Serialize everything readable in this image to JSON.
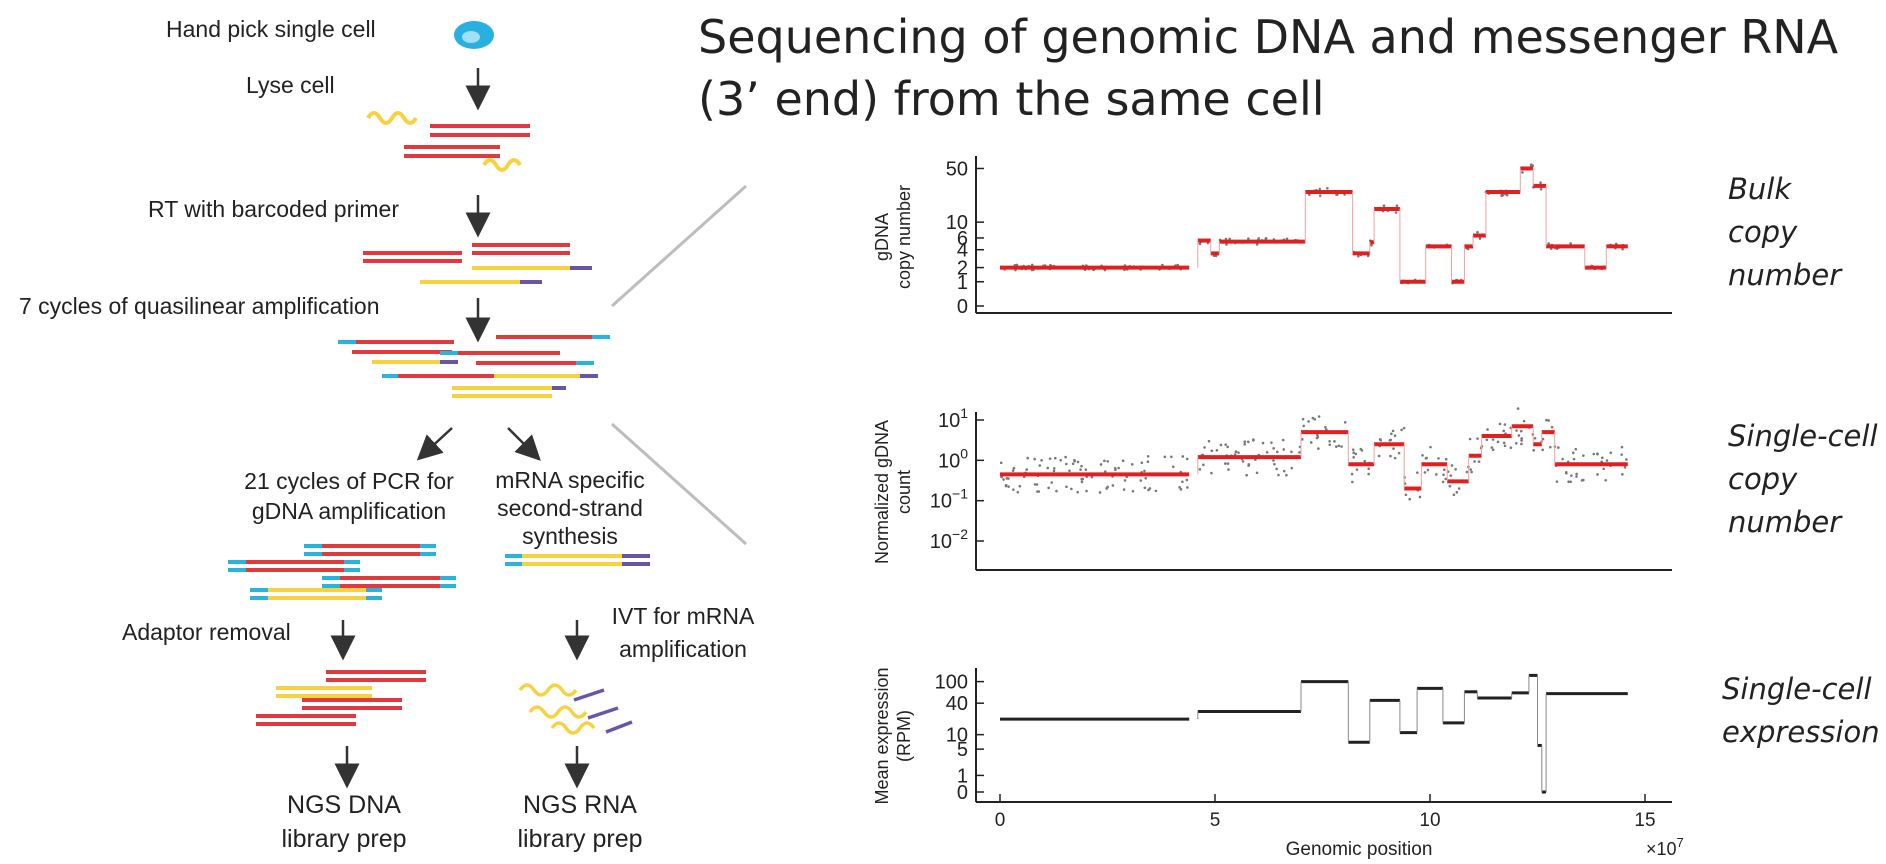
{
  "title": {
    "line1": "Sequencing of genomic DNA and messenger RNA",
    "line2": "(3’ end) from the same cell"
  },
  "workflow": {
    "step_pick": "Hand pick single cell",
    "step_lyse": "Lyse cell",
    "step_rt": "RT with barcoded primer",
    "step_amp": "7 cycles of quasilinear amplification",
    "gdna_pcr_line1": "21 cycles of PCR for",
    "gdna_pcr_line2": "gDNA amplification",
    "mrna_ss_line1": "mRNA specific",
    "mrna_ss_line2": "second-strand",
    "mrna_ss_line3": "synthesis",
    "adaptor_removal": "Adaptor removal",
    "ivt_line1": "IVT for mRNA",
    "ivt_line2": "amplification",
    "ngs_dna_line1": "NGS DNA",
    "ngs_dna_line2": "library prep",
    "ngs_rna_line1": "NGS RNA",
    "ngs_rna_line2": "library prep"
  },
  "side_labels": {
    "bulk": [
      "Bulk",
      "copy",
      "number"
    ],
    "single_cn": [
      "Single-cell",
      "copy",
      "number"
    ],
    "single_expr": [
      "Single-cell",
      "expression"
    ]
  },
  "colors": {
    "red_strand": "#e03a3e",
    "yellow_strand": "#f7d23e",
    "cyan_adaptor": "#28b4dc",
    "purple_barcode": "#6a55a5",
    "cell_blue": "#2ab0e0",
    "segment_red": "#e02020",
    "expr_line": "#222222",
    "arrow": "#333333"
  },
  "chart_data": [
    {
      "type": "scatter",
      "ylabel": "gDNA\ncopy number",
      "xlabel": "",
      "xlim": [
        -0.8,
        15.2
      ],
      "x_multiplier": "×10^7",
      "y_ticks": [
        "0",
        "1",
        "2",
        "4",
        "6",
        "10",
        "50"
      ],
      "segments": [
        {
          "x": [
            0,
            4.4
          ],
          "y": 2
        },
        {
          "x": [
            4.6,
            4.9
          ],
          "y": 5.5
        },
        {
          "x": [
            4.9,
            5.1
          ],
          "y": 3.5
        },
        {
          "x": [
            5.1,
            7.1
          ],
          "y": 5.3
        },
        {
          "x": [
            7.1,
            8.2
          ],
          "y": 25
        },
        {
          "x": [
            8.2,
            8.6
          ],
          "y": 3.5
        },
        {
          "x": [
            8.6,
            8.7
          ],
          "y": 5.2
        },
        {
          "x": [
            8.7,
            9.3
          ],
          "y": 15
        },
        {
          "x": [
            9.3,
            9.9
          ],
          "y": 1
        },
        {
          "x": [
            9.9,
            10.5
          ],
          "y": 4.5
        },
        {
          "x": [
            10.5,
            10.8
          ],
          "y": 1
        },
        {
          "x": [
            10.8,
            11.0
          ],
          "y": 4.5
        },
        {
          "x": [
            11.0,
            11.3
          ],
          "y": 6.5
        },
        {
          "x": [
            11.3,
            12.1
          ],
          "y": 25
        },
        {
          "x": [
            12.1,
            12.4
          ],
          "y": 50
        },
        {
          "x": [
            12.4,
            12.7
          ],
          "y": 30
        },
        {
          "x": [
            12.7,
            12.9
          ],
          "y": 4.5
        },
        {
          "x": [
            12.9,
            13.6
          ],
          "y": 4.5
        },
        {
          "x": [
            13.6,
            14.1
          ],
          "y": 2
        },
        {
          "x": [
            14.1,
            14.6
          ],
          "y": 4.5
        }
      ]
    },
    {
      "type": "scatter",
      "ylabel": "Normalized gDNA\ncount",
      "xlabel": "",
      "xlim": [
        -0.8,
        15.2
      ],
      "y_ticks": [
        "10^1",
        "10^0",
        "10^−1",
        "10^−2"
      ],
      "segments": [
        {
          "x": [
            0,
            4.4
          ],
          "y": 0.45
        },
        {
          "x": [
            4.6,
            7.0
          ],
          "y": 1.2
        },
        {
          "x": [
            7.0,
            8.1
          ],
          "y": 5
        },
        {
          "x": [
            8.1,
            8.7
          ],
          "y": 0.8
        },
        {
          "x": [
            8.7,
            9.4
          ],
          "y": 2.5
        },
        {
          "x": [
            9.4,
            9.8
          ],
          "y": 0.2
        },
        {
          "x": [
            9.8,
            10.4
          ],
          "y": 0.8
        },
        {
          "x": [
            10.4,
            10.9
          ],
          "y": 0.3
        },
        {
          "x": [
            10.9,
            11.2
          ],
          "y": 1.3
        },
        {
          "x": [
            11.2,
            11.9
          ],
          "y": 4
        },
        {
          "x": [
            11.9,
            12.4
          ],
          "y": 7
        },
        {
          "x": [
            12.4,
            12.6
          ],
          "y": 2.5
        },
        {
          "x": [
            12.6,
            12.9
          ],
          "y": 5
        },
        {
          "x": [
            12.9,
            14.6
          ],
          "y": 0.8
        }
      ]
    },
    {
      "type": "line",
      "ylabel": "Mean expression\n(RPM)",
      "xlabel": "Genomic position",
      "xlim": [
        -0.8,
        15.2
      ],
      "x_ticks": [
        "0",
        "5",
        "10",
        "15"
      ],
      "x_multiplier": "×10",
      "x_multiplier_exp": "7",
      "y_ticks": [
        "0",
        "1",
        "5",
        "10",
        "40",
        "100"
      ],
      "segments": [
        {
          "x": [
            0,
            4.4
          ],
          "y": 20
        },
        {
          "x": [
            4.6,
            7.0
          ],
          "y": 28
        },
        {
          "x": [
            7.0,
            8.1
          ],
          "y": 100
        },
        {
          "x": [
            8.1,
            8.6
          ],
          "y": 7
        },
        {
          "x": [
            8.6,
            9.3
          ],
          "y": 45
        },
        {
          "x": [
            9.3,
            9.7
          ],
          "y": 11
        },
        {
          "x": [
            9.7,
            10.3
          ],
          "y": 75
        },
        {
          "x": [
            10.3,
            10.8
          ],
          "y": 17
        },
        {
          "x": [
            10.8,
            11.1
          ],
          "y": 65
        },
        {
          "x": [
            11.1,
            11.9
          ],
          "y": 50
        },
        {
          "x": [
            11.9,
            12.3
          ],
          "y": 62
        },
        {
          "x": [
            12.3,
            12.5
          ],
          "y": 130
        },
        {
          "x": [
            12.5,
            12.6
          ],
          "y": 6
        },
        {
          "x": [
            12.6,
            12.7
          ],
          "y": 0
        },
        {
          "x": [
            12.7,
            14.6
          ],
          "y": 60
        }
      ]
    }
  ]
}
